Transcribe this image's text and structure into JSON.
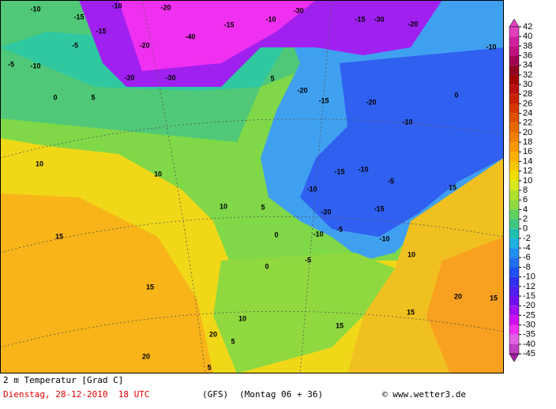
{
  "map_labels": [
    -10,
    -15,
    -10,
    -20,
    -15,
    -5,
    -10,
    -5,
    -20,
    -40,
    -30,
    -20,
    -30,
    -15,
    -10,
    -15,
    -30,
    -20,
    -10,
    -10,
    0,
    5,
    5,
    0,
    -20,
    -15,
    -20,
    -10,
    -15,
    -10,
    -20,
    -15,
    -5,
    -10,
    -5,
    -10,
    10,
    10,
    10,
    5,
    15,
    15,
    0,
    0,
    -5,
    15,
    10,
    20,
    15,
    15,
    15,
    10,
    5,
    20,
    20,
    5
  ],
  "scale": {
    "ticks": [
      42,
      40,
      38,
      36,
      34,
      32,
      30,
      28,
      26,
      24,
      22,
      20,
      18,
      16,
      14,
      12,
      10,
      8,
      6,
      4,
      2,
      0,
      -2,
      -4,
      -6,
      -8,
      -10,
      -12,
      -15,
      -20,
      -25,
      -30,
      -35,
      -40,
      -45
    ],
    "colors": [
      "#e040c0",
      "#d020a0",
      "#c01080",
      "#a00050",
      "#900020",
      "#a00000",
      "#b81010",
      "#c82000",
      "#d83800",
      "#e05000",
      "#e86800",
      "#f08000",
      "#f89800",
      "#f8b000",
      "#f8c800",
      "#f0e000",
      "#d8e820",
      "#b0e030",
      "#90d840",
      "#60d060",
      "#40c880",
      "#20c0b0",
      "#20b0e0",
      "#2090f0",
      "#2070f0",
      "#2050f0",
      "#3030f0",
      "#5020f0",
      "#7010f0",
      "#a010f0",
      "#d010f0",
      "#f030f0",
      "#e060e0",
      "#c040c0",
      "#a020a0"
    ]
  },
  "footer": {
    "title": "2 m Temperatur [Grad C]",
    "date": "Dienstag, 28-12-2010  18 UTC",
    "model": "(GFS)",
    "run": "(Montag 06 + 36)",
    "source": "© www.wetter3.de"
  }
}
